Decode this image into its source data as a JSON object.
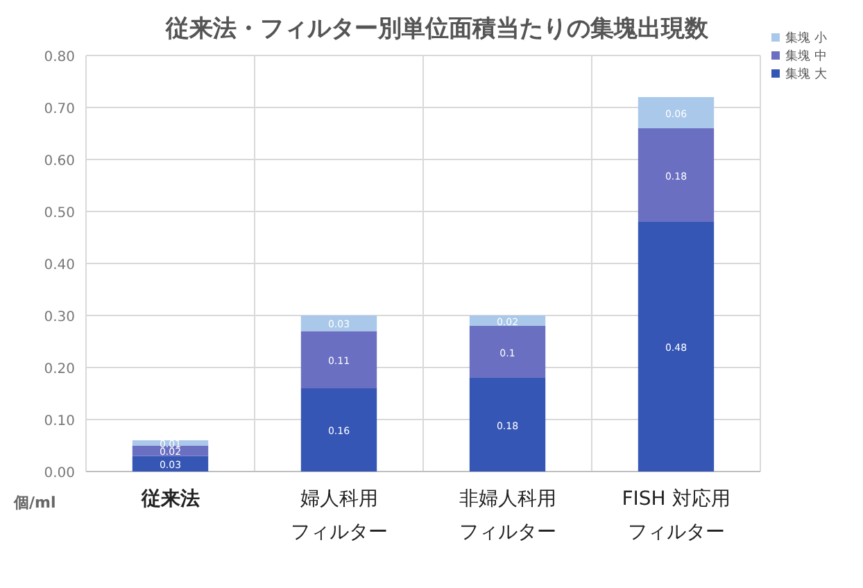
{
  "chart_data": {
    "type": "bar",
    "title": "従来法・フィルター別単位面積当たりの集塊出現数",
    "ylabel": "個/ml",
    "categories": [
      "従来法",
      "婦人科用フィルター",
      "非婦人科用フィルター",
      "FISH 対応用フィルター"
    ],
    "stacked": true,
    "data_labels": true,
    "grid": true,
    "legend": "top right",
    "ylim": [
      0,
      0.8
    ],
    "yticks": [
      {
        "value": 0,
        "label": "0.00"
      },
      {
        "value": 0.1,
        "label": "0.10"
      },
      {
        "value": 0.2,
        "label": "0.20"
      },
      {
        "value": 0.3,
        "label": "0.30"
      },
      {
        "value": 0.4,
        "label": "0.40"
      },
      {
        "value": 0.5,
        "label": "0.50"
      },
      {
        "value": 0.6,
        "label": "0.60"
      },
      {
        "value": 0.7,
        "label": "0.70"
      },
      {
        "value": 0.8,
        "label": "0.80"
      }
    ],
    "series": [
      {
        "name": "集塊 大",
        "color": "#3556b5",
        "values": [
          0.03,
          0.16,
          0.18,
          0.48
        ]
      },
      {
        "name": "集塊 中",
        "color": "#6a6fc1",
        "values": [
          0.02,
          0.11,
          0.1,
          0.18
        ]
      },
      {
        "name": "集塊 小",
        "color": "#a9c8ea",
        "values": [
          0.01,
          0.03,
          0.02,
          0.06
        ]
      }
    ]
  }
}
